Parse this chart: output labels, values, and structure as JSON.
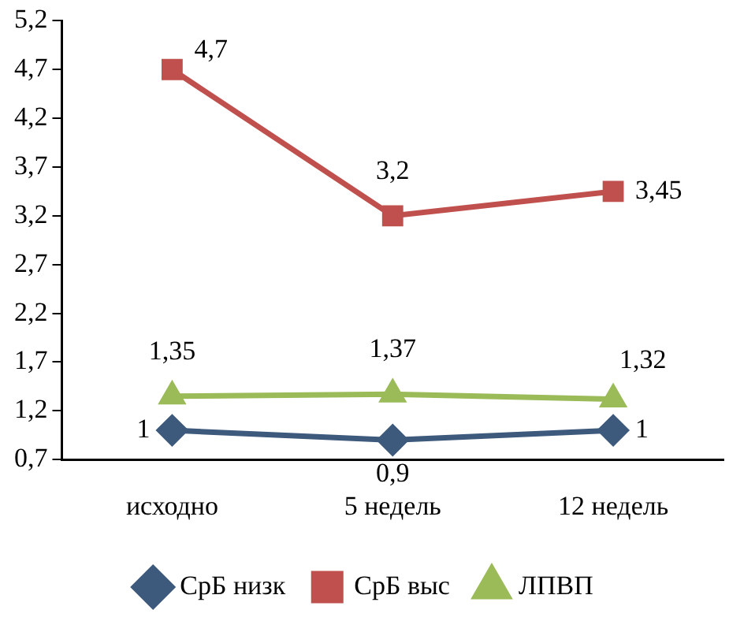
{
  "chart_data": {
    "type": "line",
    "categories": [
      "исходно",
      "5 недель",
      "12 недель"
    ],
    "series": [
      {
        "name": "СрБ низк",
        "color": "#3d5a7c",
        "marker": "diamond",
        "values": [
          1,
          0.9,
          1
        ],
        "value_labels": [
          "1",
          "0,9",
          "1"
        ]
      },
      {
        "name": "СрБ выс",
        "color": "#c0504d",
        "marker": "square",
        "values": [
          4.7,
          3.2,
          3.45
        ],
        "value_labels": [
          "4,7",
          "3,2",
          "3,45"
        ]
      },
      {
        "name": "ЛПВП",
        "color": "#9bbb59",
        "marker": "triangle",
        "values": [
          1.35,
          1.37,
          1.32
        ],
        "value_labels": [
          "1,35",
          "1,37",
          "1,32"
        ]
      }
    ],
    "ylim": [
      0.7,
      5.2
    ],
    "yticks": [
      {
        "value": 0.7,
        "label": "0,7"
      },
      {
        "value": 1.2,
        "label": "1,2"
      },
      {
        "value": 1.7,
        "label": "1,7"
      },
      {
        "value": 2.2,
        "label": "2,2"
      },
      {
        "value": 2.7,
        "label": "2,7"
      },
      {
        "value": 3.2,
        "label": "3,2"
      },
      {
        "value": 3.7,
        "label": "3,7"
      },
      {
        "value": 4.2,
        "label": "4,2"
      },
      {
        "value": 4.7,
        "label": "4,7"
      },
      {
        "value": 5.2,
        "label": "5,2"
      }
    ],
    "grid": false,
    "legend": "bottom",
    "line_style": "solid"
  }
}
